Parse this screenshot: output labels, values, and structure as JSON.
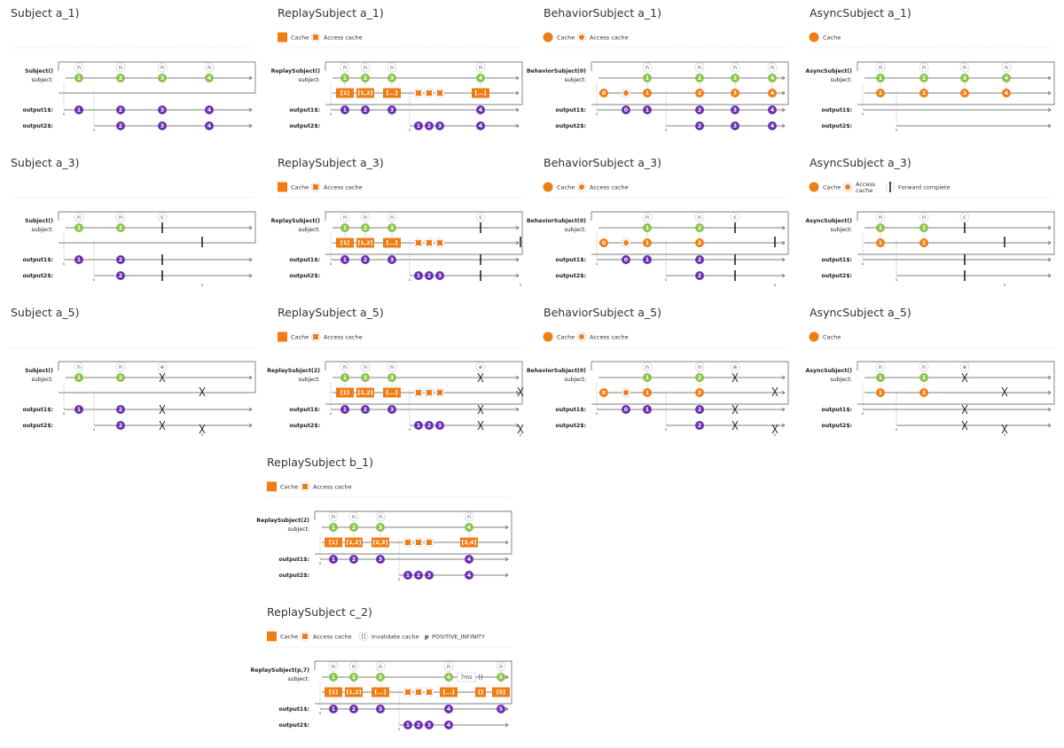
{
  "colors": {
    "subject_value": "#8bc34a",
    "output_value": "#6a2fb0",
    "cache": "#f07d14",
    "line": "#555555",
    "dashed": "#aaaaaa"
  },
  "legend_labels": {
    "cache": "Cache",
    "access_cache": "Access cache",
    "access_cache_split": [
      "Access",
      "cache"
    ],
    "forward_complete": "Forward complete",
    "invalidate_cache": "Invalidate cache",
    "infinity_symbol": "p",
    "infinity_text": "POSITIVE_INFINITY"
  },
  "row_labels": {
    "subject": "subject:",
    "output1": "output1$:",
    "output2": "output2$:"
  },
  "subscribe_marker": "s",
  "diagrams": [
    {
      "id": "subject-a1",
      "title": "Subject a_1)",
      "family": "subject",
      "ctor": "Subject()",
      "end": "none",
      "legend": [],
      "notifs": [
        "n",
        "n",
        "n",
        "n"
      ],
      "values": [
        "1",
        "2",
        "3",
        "4"
      ]
    },
    {
      "id": "replay-a1",
      "title": "ReplaySubject a_1)",
      "family": "replay",
      "ctor": "ReplaySubject()",
      "end": "none",
      "legend": [
        "cache",
        "access"
      ],
      "notifs": [
        "n",
        "n",
        "n",
        "n"
      ],
      "values": [
        "1",
        "2",
        "3",
        "4"
      ],
      "caches": [
        "[1]",
        "[1,2]",
        "[...]",
        "[...]"
      ]
    },
    {
      "id": "behavior-a1",
      "title": "BehaviorSubject a_1)",
      "family": "behavior",
      "ctor": "BehaviorSubject(0)",
      "end": "none",
      "legend": [
        "cache",
        "access"
      ],
      "notifs": [
        "n",
        "n",
        "n",
        "n"
      ],
      "values": [
        "1",
        "2",
        "3",
        "4"
      ],
      "initial": "0"
    },
    {
      "id": "async-a1",
      "title": "AsyncSubject a_1)",
      "family": "async",
      "ctor": "AsyncSubject()",
      "end": "none",
      "legend": [
        "cache"
      ],
      "notifs": [
        "n",
        "n",
        "n",
        "n"
      ],
      "values": [
        "1",
        "2",
        "3",
        "4"
      ]
    },
    {
      "id": "subject-a3",
      "title": "Subject a_3)",
      "family": "subject",
      "ctor": "Subject()",
      "end": "complete",
      "end_label": "c",
      "legend": [],
      "notifs": [
        "n",
        "n"
      ],
      "values": [
        "1",
        "2"
      ]
    },
    {
      "id": "replay-a3",
      "title": "ReplaySubject a_3)",
      "family": "replay",
      "ctor": "ReplaySubject()",
      "end": "complete",
      "end_label": "c",
      "legend": [
        "cache",
        "access"
      ],
      "notifs": [
        "n",
        "n",
        "n"
      ],
      "values": [
        "1",
        "2",
        "3"
      ],
      "caches": [
        "[1]",
        "[1,2]",
        "[...]"
      ]
    },
    {
      "id": "behavior-a3",
      "title": "BehaviorSubject a_3)",
      "family": "behavior",
      "ctor": "BehaviorSubject(0)",
      "end": "complete",
      "end_label": "c",
      "legend": [
        "cache",
        "access"
      ],
      "notifs": [
        "n",
        "n"
      ],
      "values": [
        "1",
        "2"
      ],
      "initial": "0"
    },
    {
      "id": "async-a3",
      "title": "AsyncSubject a_3)",
      "family": "async",
      "ctor": "AsyncSubject()",
      "end": "complete",
      "end_label": "c",
      "legend": [
        "cache",
        "access2",
        "forward"
      ],
      "notifs": [
        "n",
        "n"
      ],
      "values": [
        "1",
        "2"
      ]
    },
    {
      "id": "subject-a5",
      "title": "Subject a_5)",
      "family": "subject",
      "ctor": "Subject()",
      "end": "error",
      "end_label": "e",
      "legend": [],
      "notifs": [
        "n",
        "n"
      ],
      "values": [
        "1",
        "2"
      ]
    },
    {
      "id": "replay-a5",
      "title": "ReplaySubject a_5)",
      "family": "replay",
      "ctor": "ReplaySubject(2)",
      "end": "error",
      "end_label": "e",
      "legend": [
        "cache",
        "access"
      ],
      "notifs": [
        "n",
        "n",
        "n"
      ],
      "values": [
        "1",
        "2",
        "3"
      ],
      "caches": [
        "[1]",
        "[1,2]",
        "[...]"
      ]
    },
    {
      "id": "behavior-a5",
      "title": "BehaviorSubject a_5)",
      "family": "behavior",
      "ctor": "BehaviorSubject(0)",
      "end": "error",
      "end_label": "e",
      "legend": [
        "cache",
        "access"
      ],
      "notifs": [
        "n",
        "n"
      ],
      "values": [
        "1",
        "2"
      ],
      "initial": "0"
    },
    {
      "id": "async-a5",
      "title": "AsyncSubject a_5)",
      "family": "async",
      "ctor": "AsyncSubject()",
      "end": "error",
      "end_label": "e",
      "legend": [
        "cache"
      ],
      "notifs": [
        "n",
        "n"
      ],
      "values": [
        "1",
        "2"
      ]
    },
    {
      "id": "replay-b1",
      "title": "ReplaySubject b_1)",
      "family": "replay",
      "ctor": "ReplaySubject(2)",
      "end": "none",
      "legend": [
        "cache",
        "access"
      ],
      "notifs": [
        "n",
        "n",
        "n",
        "n"
      ],
      "values": [
        "1",
        "2",
        "3",
        "4"
      ],
      "caches": [
        "[1]",
        "[1,2]",
        "[2,3]",
        "[3,4]"
      ]
    },
    {
      "id": "replay-c2",
      "title": "ReplaySubject c_2)",
      "family": "replay-time",
      "ctor": "ReplaySubject(p,7)",
      "end": "none",
      "legend": [
        "cache",
        "access",
        "invalidate",
        "infinity"
      ],
      "notifs": [
        "n",
        "n",
        "n",
        "n",
        "n"
      ],
      "values": [
        "1",
        "2",
        "3",
        "4",
        "5"
      ],
      "caches": [
        "[1]",
        "[1,2]",
        "[...]",
        "[...]",
        "[]",
        "[5]"
      ],
      "delay_label": "7ms",
      "invalidate_mark": "[]"
    }
  ]
}
